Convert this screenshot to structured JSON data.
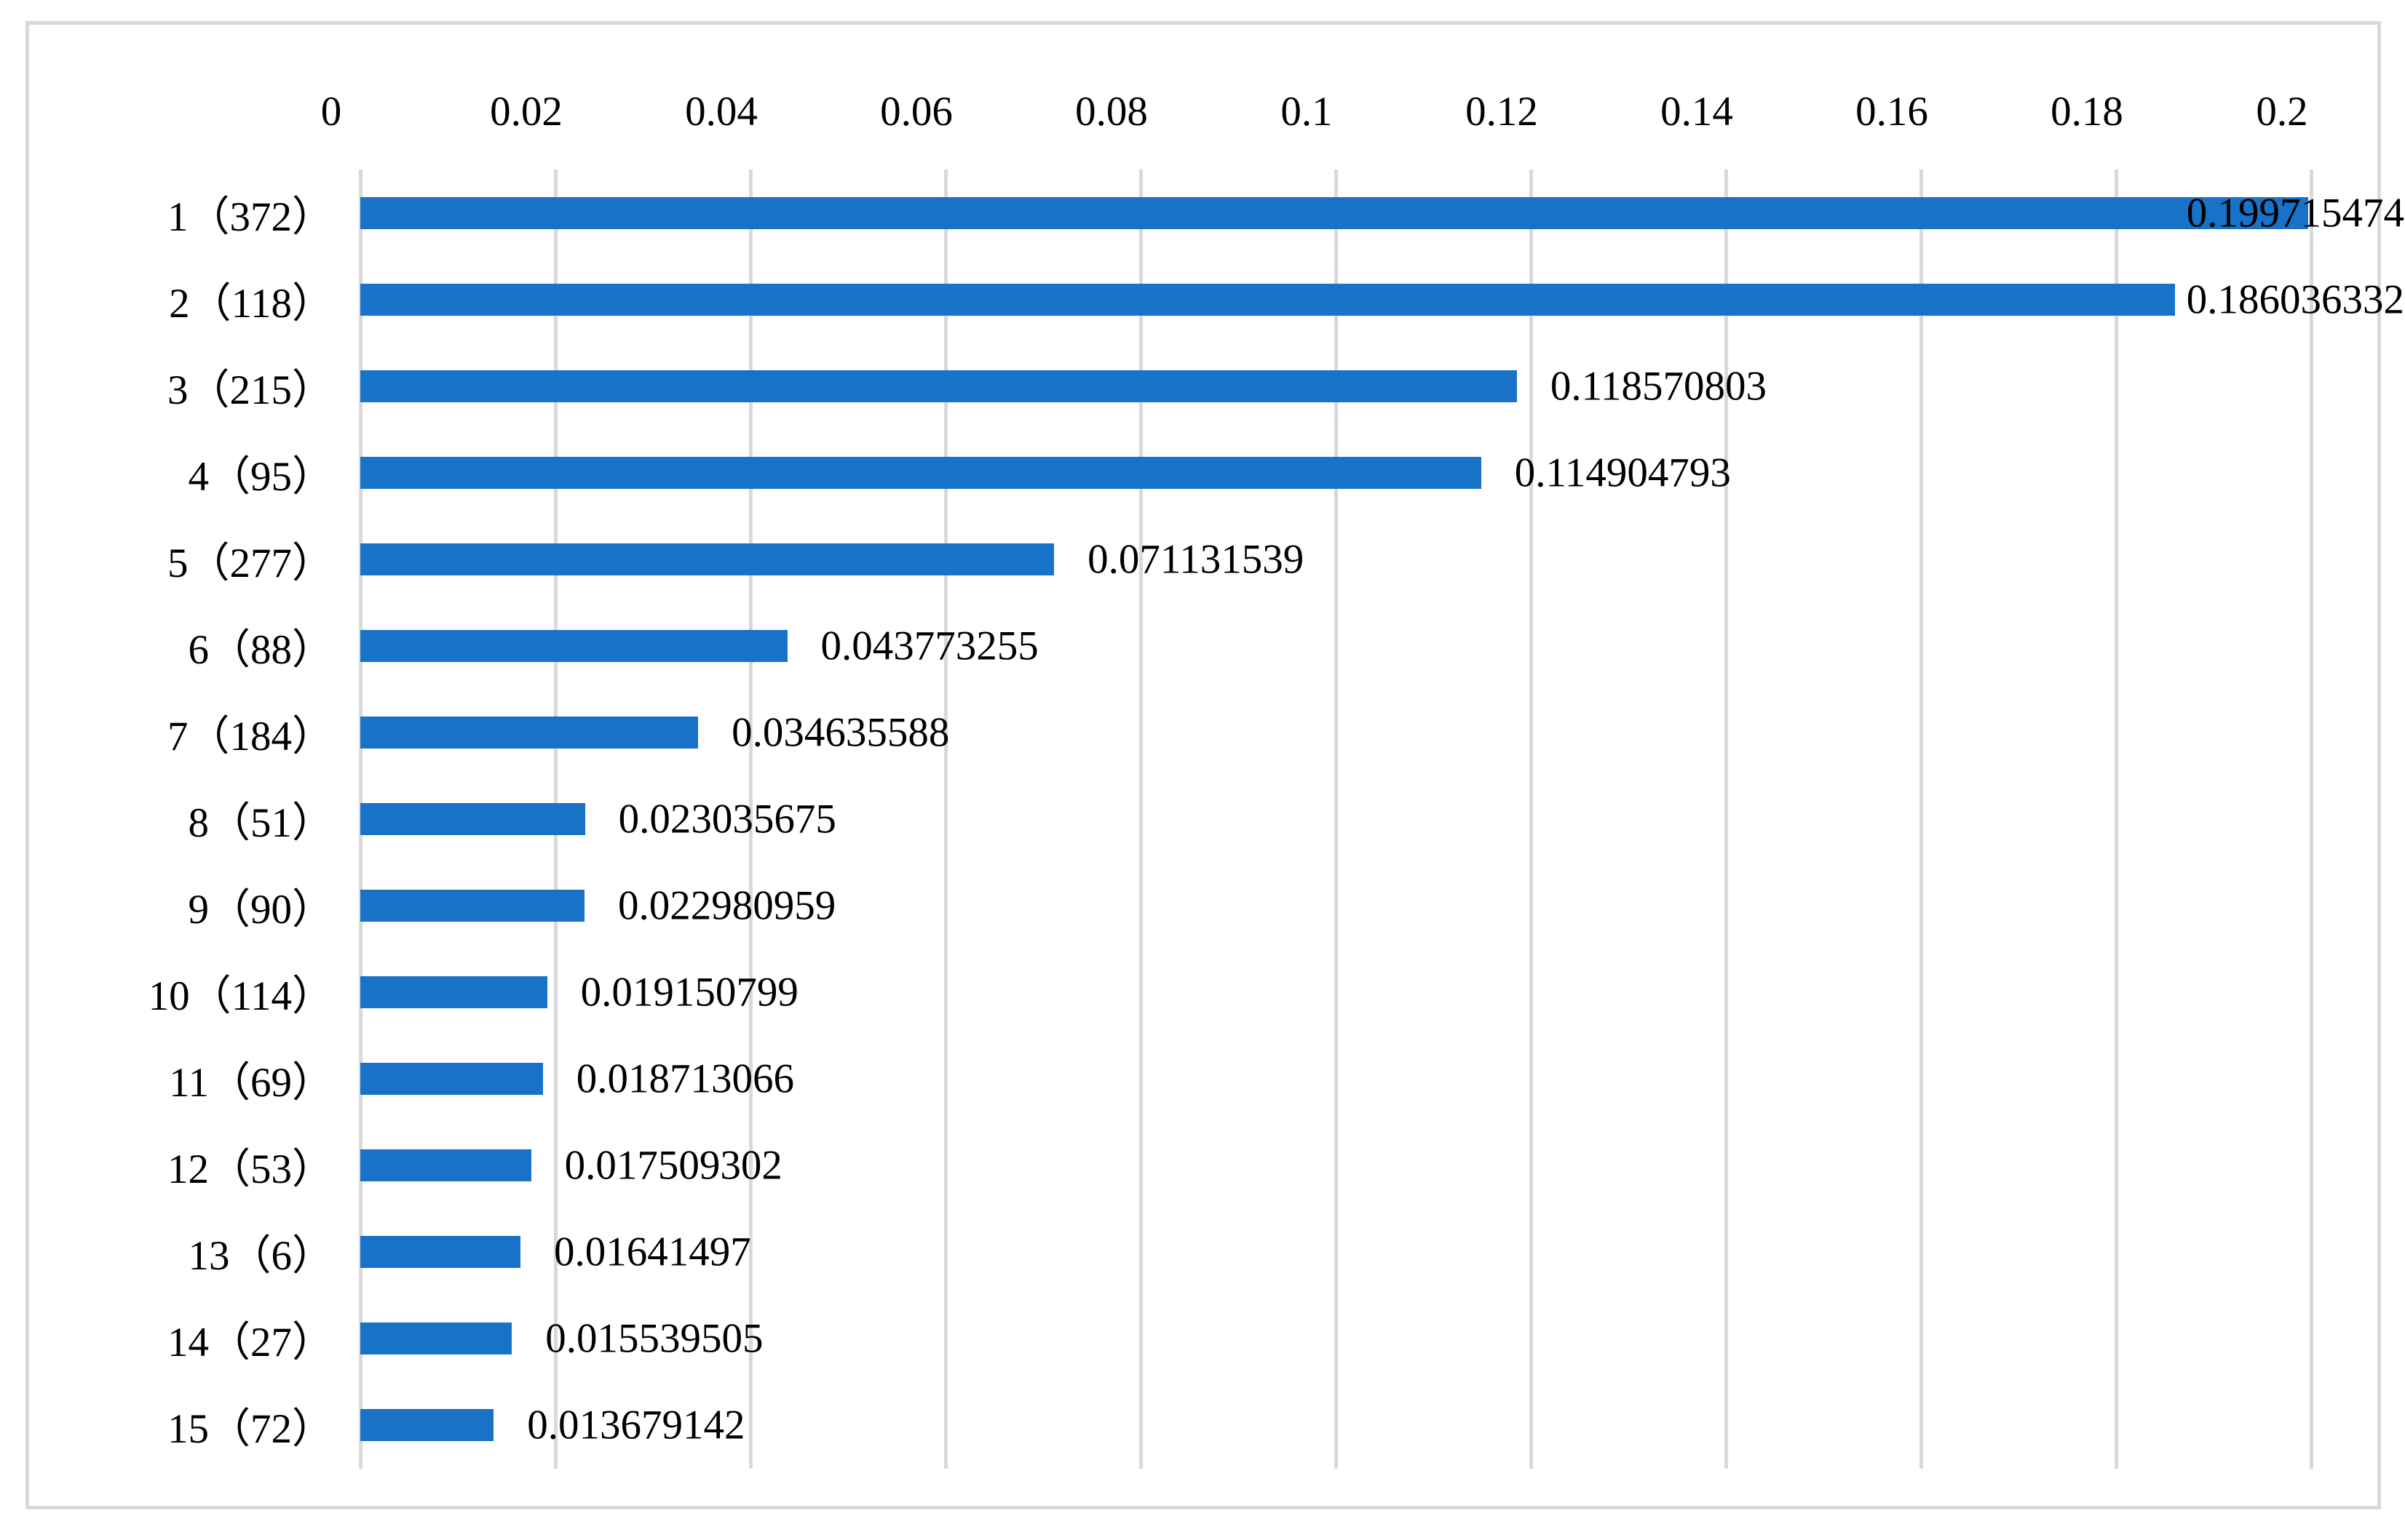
{
  "chart_data": {
    "type": "bar",
    "orientation": "horizontal",
    "title": "",
    "categories": [
      "1（372）",
      "2（118）",
      "3（215）",
      "4（95）",
      "5（277）",
      "6（88）",
      "7（184）",
      "8（51）",
      "9（90）",
      "10（114）",
      "11（69）",
      "12（53）",
      "13（6）",
      "14（27）",
      "15（72）"
    ],
    "values": [
      0.199715474,
      0.186036332,
      0.118570803,
      0.114904793,
      0.071131539,
      0.043773255,
      0.034635588,
      0.023035675,
      0.022980959,
      0.019150799,
      0.018713066,
      0.017509302,
      0.01641497,
      0.015539505,
      0.013679142
    ],
    "value_labels": [
      "0.199715474",
      "0.186036332",
      "0.118570803",
      "0.114904793",
      "0.071131539",
      "0.043773255",
      "0.034635588",
      "0.023035675",
      "0.022980959",
      "0.019150799",
      "0.018713066",
      "0.017509302",
      "0.01641497",
      "0.015539505",
      "0.013679142"
    ],
    "x_axis": {
      "position": "top",
      "min": 0,
      "max": 0.2,
      "tick_interval": 0.02,
      "tick_labels": [
        "0",
        "0.02",
        "0.04",
        "0.06",
        "0.08",
        "0.1",
        "0.12",
        "0.14",
        "0.16",
        "0.18",
        "0.2"
      ]
    },
    "ylabel": "",
    "xlabel": "",
    "grid": true,
    "legend": false,
    "colors": {
      "bar": "#1772C8",
      "gridline": "#D9D9D9",
      "frame_border": "#D9D9D9",
      "text": "#000000",
      "background": "#FFFFFF"
    }
  }
}
